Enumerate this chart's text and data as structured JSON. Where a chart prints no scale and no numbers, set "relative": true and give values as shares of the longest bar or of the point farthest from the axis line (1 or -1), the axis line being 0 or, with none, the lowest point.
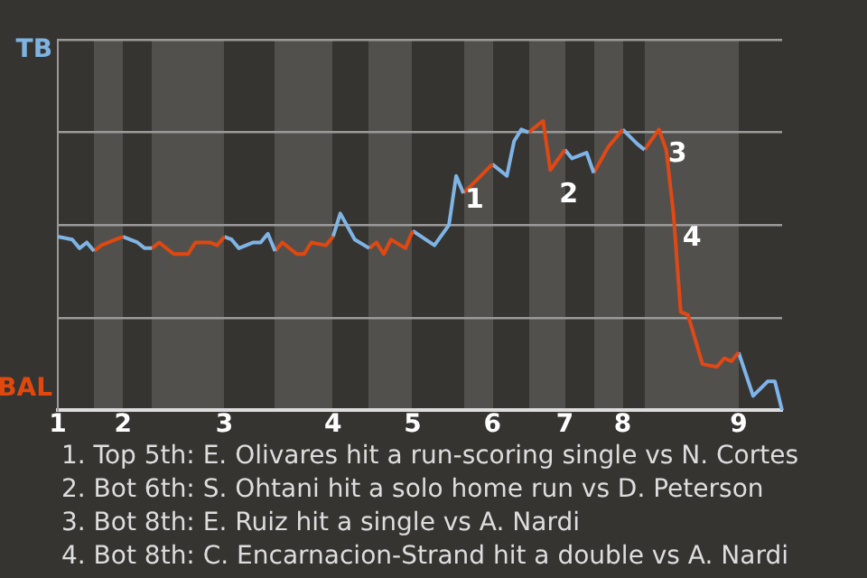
{
  "chart_data": {
    "type": "line",
    "relative": true,
    "grid": "y",
    "legend": false,
    "categories": [
      "1",
      null,
      null,
      null,
      null,
      null,
      null,
      null,
      null,
      "2",
      null,
      null,
      null,
      null,
      null,
      null,
      null,
      null,
      null,
      null,
      null,
      null,
      null,
      "3",
      null,
      null,
      null,
      null,
      null,
      null,
      null,
      null,
      null,
      null,
      null,
      null,
      null,
      null,
      "4",
      null,
      null,
      null,
      null,
      null,
      null,
      null,
      null,
      null,
      null,
      "5",
      null,
      null,
      null,
      null,
      null,
      null,
      null,
      null,
      null,
      null,
      "6",
      null,
      null,
      null,
      null,
      null,
      null,
      null,
      null,
      null,
      "7",
      null,
      null,
      null,
      null,
      null,
      null,
      null,
      "8",
      null,
      null,
      null,
      null,
      null,
      null,
      null,
      null,
      null,
      null,
      null,
      null,
      null,
      null,
      null,
      "9",
      null,
      null,
      null,
      null,
      null,
      null
    ],
    "series": [
      {
        "name": "TB",
        "color": "#7fb4e2",
        "values": [
          0.6,
          null,
          0.59,
          0.56,
          0.58,
          0.55,
          null,
          null,
          null,
          null,
          null,
          null,
          null,
          null,
          null,
          null,
          null,
          null,
          null,
          null,
          null,
          null,
          null,
          null,
          null,
          null,
          null,
          null,
          null,
          null,
          null,
          null,
          null,
          null,
          null,
          null,
          null,
          null,
          null,
          null,
          null,
          null,
          null,
          null,
          null,
          null,
          null,
          null,
          null,
          null,
          null,
          null,
          null,
          null,
          null,
          null,
          null,
          null,
          null,
          null,
          null,
          null,
          null,
          null,
          null,
          null,
          null,
          null,
          null,
          null,
          null,
          null,
          null,
          null,
          null,
          null,
          null,
          null,
          null,
          null,
          null,
          null,
          null,
          null,
          null,
          null,
          null,
          null,
          null,
          null,
          null,
          null,
          null,
          null,
          null,
          null,
          null,
          null,
          null,
          null,
          null
        ]
      },
      {
        "name": "BAL",
        "color": "#e0480e",
        "values": [
          null,
          null,
          null,
          null,
          null,
          0.55,
          0.57,
          null,
          0.59,
          0.6,
          null,
          null,
          null,
          null,
          null,
          null,
          null,
          null,
          null,
          null,
          null,
          null,
          null,
          null,
          null,
          null,
          null,
          null,
          null,
          null,
          null,
          null,
          null,
          null,
          null,
          null,
          null,
          null,
          null,
          null,
          null,
          null,
          null,
          null,
          null,
          null,
          null,
          null,
          null,
          null,
          null,
          null,
          null,
          null,
          null,
          null,
          null,
          null,
          null,
          null,
          null,
          null,
          null,
          null,
          null,
          null,
          null,
          null,
          null,
          null,
          null,
          null,
          null,
          null,
          null,
          null,
          null,
          null,
          null,
          null,
          null,
          null,
          null,
          null,
          null,
          null,
          null,
          null,
          null,
          null,
          null,
          null,
          null,
          null,
          null,
          null,
          null,
          null,
          null,
          null,
          null
        ]
      },
      {
        "color": "#7fb4e3",
        "values": [
          null,
          null,
          null,
          null,
          null,
          null,
          null,
          null,
          null,
          0.6,
          null,
          0.58,
          0.56,
          0.56,
          null,
          null,
          null,
          null,
          null,
          null,
          null,
          null,
          null,
          null,
          null,
          null,
          null,
          null,
          null,
          null,
          null,
          null,
          null,
          null,
          null,
          null,
          null,
          null,
          null,
          null,
          null,
          null,
          null,
          null,
          null,
          null,
          null,
          null,
          null,
          null,
          null,
          null,
          null,
          null,
          null,
          null,
          null,
          null,
          null,
          null,
          null,
          null,
          null,
          null,
          null,
          null,
          null,
          null,
          null,
          null,
          null,
          null,
          null,
          null,
          null,
          null,
          null,
          null,
          null,
          null,
          null,
          null,
          null,
          null,
          null,
          null,
          null,
          null,
          null,
          null,
          null,
          null,
          null,
          null,
          null,
          null,
          null,
          null,
          null,
          null,
          null
        ]
      },
      {
        "color": "#e0480f",
        "values": [
          null,
          null,
          null,
          null,
          null,
          null,
          null,
          null,
          null,
          null,
          null,
          null,
          null,
          0.56,
          0.58,
          null,
          0.54,
          null,
          0.54,
          0.58,
          null,
          0.58,
          0.57,
          0.6,
          null,
          null,
          null,
          null,
          null,
          null,
          null,
          null,
          null,
          null,
          null,
          null,
          null,
          null,
          null,
          null,
          null,
          null,
          null,
          null,
          null,
          null,
          null,
          null,
          null,
          null,
          null,
          null,
          null,
          null,
          null,
          null,
          null,
          null,
          null,
          null,
          null,
          null,
          null,
          null,
          null,
          null,
          null,
          null,
          null,
          null,
          null,
          null,
          null,
          null,
          null,
          null,
          null,
          null,
          null,
          null,
          null,
          null,
          null,
          null,
          null,
          null,
          null,
          null,
          null,
          null,
          null,
          null,
          null,
          null,
          null,
          null,
          null,
          null,
          null,
          null,
          null
        ]
      },
      {
        "color": "#7fb4e4",
        "values": [
          null,
          null,
          null,
          null,
          null,
          null,
          null,
          null,
          null,
          null,
          null,
          null,
          null,
          null,
          null,
          null,
          null,
          null,
          null,
          null,
          null,
          null,
          null,
          0.6,
          0.59,
          0.56,
          null,
          0.58,
          0.58,
          0.61,
          0.55,
          null,
          null,
          null,
          null,
          null,
          null,
          null,
          null,
          null,
          null,
          null,
          null,
          null,
          null,
          null,
          null,
          null,
          null,
          null,
          null,
          null,
          null,
          null,
          null,
          null,
          null,
          null,
          null,
          null,
          null,
          null,
          null,
          null,
          null,
          null,
          null,
          null,
          null,
          null,
          null,
          null,
          null,
          null,
          null,
          null,
          null,
          null,
          null,
          null,
          null,
          null,
          null,
          null,
          null,
          null,
          null,
          null,
          null,
          null,
          null,
          null,
          null,
          null,
          null,
          null,
          null,
          null,
          null,
          null,
          null
        ]
      },
      {
        "color": "#e04810",
        "values": [
          null,
          null,
          null,
          null,
          null,
          null,
          null,
          null,
          null,
          null,
          null,
          null,
          null,
          null,
          null,
          null,
          null,
          null,
          null,
          null,
          null,
          null,
          null,
          null,
          null,
          null,
          null,
          null,
          null,
          null,
          0.55,
          0.58,
          null,
          0.54,
          0.54,
          0.58,
          null,
          0.57,
          0.6,
          null,
          null,
          null,
          null,
          null,
          null,
          null,
          null,
          null,
          null,
          null,
          null,
          null,
          null,
          null,
          null,
          null,
          null,
          null,
          null,
          null,
          null,
          null,
          null,
          null,
          null,
          null,
          null,
          null,
          null,
          null,
          null,
          null,
          null,
          null,
          null,
          null,
          null,
          null,
          null,
          null,
          null,
          null,
          null,
          null,
          null,
          null,
          null,
          null,
          null,
          null,
          null,
          null,
          null,
          null,
          null,
          null,
          null,
          null,
          null,
          null,
          null
        ]
      },
      {
        "color": "#7fb4e5",
        "values": [
          null,
          null,
          null,
          null,
          null,
          null,
          null,
          null,
          null,
          null,
          null,
          null,
          null,
          null,
          null,
          null,
          null,
          null,
          null,
          null,
          null,
          null,
          null,
          null,
          null,
          null,
          null,
          null,
          null,
          null,
          null,
          null,
          null,
          null,
          null,
          null,
          null,
          null,
          0.6,
          0.68,
          null,
          0.59,
          null,
          0.56,
          null,
          null,
          null,
          null,
          null,
          null,
          null,
          null,
          null,
          null,
          null,
          null,
          null,
          null,
          null,
          null,
          null,
          null,
          null,
          null,
          null,
          null,
          null,
          null,
          null,
          null,
          null,
          null,
          null,
          null,
          null,
          null,
          null,
          null,
          null,
          null,
          null,
          null,
          null,
          null,
          null,
          null,
          null,
          null,
          null,
          null,
          null,
          null,
          null,
          null,
          null,
          null,
          null,
          null,
          null,
          null,
          null
        ]
      },
      {
        "color": "#e04811",
        "values": [
          null,
          null,
          null,
          null,
          null,
          null,
          null,
          null,
          null,
          null,
          null,
          null,
          null,
          null,
          null,
          null,
          null,
          null,
          null,
          null,
          null,
          null,
          null,
          null,
          null,
          null,
          null,
          null,
          null,
          null,
          null,
          null,
          null,
          null,
          null,
          null,
          null,
          null,
          null,
          null,
          null,
          null,
          null,
          0.56,
          0.58,
          0.54,
          0.59,
          null,
          0.56,
          0.62,
          null,
          null,
          null,
          null,
          null,
          null,
          null,
          null,
          null,
          null,
          null,
          null,
          null,
          null,
          null,
          null,
          null,
          null,
          null,
          null,
          null,
          null,
          null,
          null,
          null,
          null,
          null,
          null,
          null,
          null,
          null,
          null,
          null,
          null,
          null,
          null,
          null,
          null,
          null,
          null,
          null,
          null,
          null,
          null,
          null,
          null,
          null,
          null,
          null,
          null,
          null
        ]
      },
      {
        "color": "#7fb4e6",
        "values": [
          null,
          null,
          null,
          null,
          null,
          null,
          null,
          null,
          null,
          null,
          null,
          null,
          null,
          null,
          null,
          null,
          null,
          null,
          null,
          null,
          null,
          null,
          null,
          null,
          null,
          null,
          null,
          null,
          null,
          null,
          null,
          null,
          null,
          null,
          null,
          null,
          null,
          null,
          null,
          null,
          null,
          null,
          null,
          null,
          null,
          null,
          null,
          null,
          null,
          0.62,
          null,
          null,
          0.57,
          null,
          0.64,
          0.81,
          0.75,
          null,
          null,
          null,
          null,
          null,
          null,
          null,
          null,
          null,
          null,
          null,
          null,
          null,
          null,
          null,
          null,
          null,
          null,
          null,
          null,
          null,
          null,
          null,
          null,
          null,
          null,
          null,
          null,
          null,
          null,
          null,
          null,
          null,
          null,
          null,
          null,
          null,
          null,
          null,
          null,
          null,
          null,
          null,
          null
        ]
      },
      {
        "color": "#e04812",
        "values": [
          null,
          null,
          null,
          null,
          null,
          null,
          null,
          null,
          null,
          null,
          null,
          null,
          null,
          null,
          null,
          null,
          null,
          null,
          null,
          null,
          null,
          null,
          null,
          null,
          null,
          null,
          null,
          null,
          null,
          null,
          null,
          null,
          null,
          null,
          null,
          null,
          null,
          null,
          null,
          null,
          null,
          null,
          null,
          null,
          null,
          null,
          null,
          null,
          null,
          null,
          null,
          null,
          null,
          null,
          null,
          null,
          0.75,
          null,
          0.8,
          null,
          0.85,
          null,
          null,
          null,
          null,
          null,
          null,
          null,
          null,
          null,
          null,
          null,
          null,
          null,
          null,
          null,
          null,
          null,
          null,
          null,
          null,
          null,
          null,
          null,
          null,
          null,
          null,
          null,
          null,
          null,
          null,
          null,
          null,
          null,
          null,
          null,
          null,
          null,
          null,
          null,
          null
        ]
      },
      {
        "color": "#7fb4e7",
        "values": [
          null,
          null,
          null,
          null,
          null,
          null,
          null,
          null,
          null,
          null,
          null,
          null,
          null,
          null,
          null,
          null,
          null,
          null,
          null,
          null,
          null,
          null,
          null,
          null,
          null,
          null,
          null,
          null,
          null,
          null,
          null,
          null,
          null,
          null,
          null,
          null,
          null,
          null,
          null,
          null,
          null,
          null,
          null,
          null,
          null,
          null,
          null,
          null,
          null,
          null,
          null,
          null,
          null,
          null,
          null,
          null,
          null,
          null,
          null,
          null,
          0.85,
          null,
          0.81,
          0.93,
          0.97,
          0.96,
          null,
          null,
          null,
          null,
          null,
          null,
          null,
          null,
          null,
          null,
          null,
          null,
          null,
          null,
          null,
          null,
          null,
          null,
          null,
          null,
          null,
          null,
          null,
          null,
          null,
          null,
          null,
          null,
          null,
          null,
          null,
          null,
          null,
          null,
          null
        ]
      },
      {
        "color": "#e04813",
        "values": [
          null,
          null,
          null,
          null,
          null,
          null,
          null,
          null,
          null,
          null,
          null,
          null,
          null,
          null,
          null,
          null,
          null,
          null,
          null,
          null,
          null,
          null,
          null,
          null,
          null,
          null,
          null,
          null,
          null,
          null,
          null,
          null,
          null,
          null,
          null,
          null,
          null,
          null,
          null,
          null,
          null,
          null,
          null,
          null,
          null,
          null,
          null,
          null,
          null,
          null,
          null,
          null,
          null,
          null,
          null,
          null,
          null,
          null,
          null,
          null,
          null,
          null,
          null,
          null,
          null,
          0.96,
          null,
          1,
          0.83,
          null,
          0.9,
          null,
          null,
          null,
          null,
          null,
          null,
          null,
          null,
          null,
          null,
          null,
          null,
          null,
          null,
          null,
          null,
          null,
          null,
          null,
          null,
          null,
          null,
          null,
          null,
          null,
          null,
          null,
          null,
          null,
          null
        ]
      },
      {
        "color": "#7fb4e8",
        "values": [
          null,
          null,
          null,
          null,
          null,
          null,
          null,
          null,
          null,
          null,
          null,
          null,
          null,
          null,
          null,
          null,
          null,
          null,
          null,
          null,
          null,
          null,
          null,
          null,
          null,
          null,
          null,
          null,
          null,
          null,
          null,
          null,
          null,
          null,
          null,
          null,
          null,
          null,
          null,
          null,
          null,
          null,
          null,
          null,
          null,
          null,
          null,
          null,
          null,
          null,
          null,
          null,
          null,
          null,
          null,
          null,
          null,
          null,
          null,
          null,
          null,
          null,
          null,
          null,
          null,
          null,
          null,
          null,
          null,
          null,
          0.9,
          0.87,
          null,
          0.89,
          0.82,
          null,
          null,
          null,
          null,
          null,
          null,
          null,
          null,
          null,
          null,
          null,
          null,
          null,
          null,
          null,
          null,
          null,
          null,
          null,
          null,
          null,
          null,
          null,
          null,
          null,
          null
        ]
      },
      {
        "color": "#e04814",
        "values": [
          null,
          null,
          null,
          null,
          null,
          null,
          null,
          null,
          null,
          null,
          null,
          null,
          null,
          null,
          null,
          null,
          null,
          null,
          null,
          null,
          null,
          null,
          null,
          null,
          null,
          null,
          null,
          null,
          null,
          null,
          null,
          null,
          null,
          null,
          null,
          null,
          null,
          null,
          null,
          null,
          null,
          null,
          null,
          null,
          null,
          null,
          null,
          null,
          null,
          null,
          null,
          null,
          null,
          null,
          null,
          null,
          null,
          null,
          null,
          null,
          null,
          null,
          null,
          null,
          null,
          null,
          null,
          null,
          null,
          null,
          null,
          null,
          null,
          null,
          0.82,
          null,
          0.91,
          null,
          0.97,
          null,
          null,
          null,
          null,
          null,
          null,
          null,
          null,
          null,
          null,
          null,
          null,
          null,
          null,
          null,
          null,
          null,
          null,
          null,
          null,
          null,
          null
        ]
      },
      {
        "color": "#7fb4e9",
        "values": [
          null,
          null,
          null,
          null,
          null,
          null,
          null,
          null,
          null,
          null,
          null,
          null,
          null,
          null,
          null,
          null,
          null,
          null,
          null,
          null,
          null,
          null,
          null,
          null,
          null,
          null,
          null,
          null,
          null,
          null,
          null,
          null,
          null,
          null,
          null,
          null,
          null,
          null,
          null,
          null,
          null,
          null,
          null,
          null,
          null,
          null,
          null,
          null,
          null,
          null,
          null,
          null,
          null,
          null,
          null,
          null,
          null,
          null,
          null,
          null,
          null,
          null,
          null,
          null,
          null,
          null,
          null,
          null,
          null,
          null,
          null,
          null,
          null,
          null,
          null,
          null,
          null,
          null,
          0.97,
          null,
          0.92,
          0.9,
          null,
          null,
          null,
          null,
          null,
          null,
          null,
          null,
          null,
          null,
          null,
          null,
          null,
          null,
          null,
          null,
          null,
          null,
          null
        ]
      },
      {
        "color": "#e04815",
        "values": [
          null,
          null,
          null,
          null,
          null,
          null,
          null,
          null,
          null,
          null,
          null,
          null,
          null,
          null,
          null,
          null,
          null,
          null,
          null,
          null,
          null,
          null,
          null,
          null,
          null,
          null,
          null,
          null,
          null,
          null,
          null,
          null,
          null,
          null,
          null,
          null,
          null,
          null,
          null,
          null,
          null,
          null,
          null,
          null,
          null,
          null,
          null,
          null,
          null,
          null,
          null,
          null,
          null,
          null,
          null,
          null,
          null,
          null,
          null,
          null,
          null,
          null,
          null,
          null,
          null,
          null,
          null,
          null,
          null,
          null,
          null,
          null,
          null,
          null,
          null,
          null,
          null,
          null,
          null,
          null,
          null,
          0.9,
          null,
          0.97,
          0.9,
          0.68,
          0.34,
          0.33,
          null,
          0.16,
          null,
          0.15,
          0.18,
          0.17,
          0.2,
          null,
          null,
          null,
          null,
          null,
          null
        ]
      },
      {
        "color": "#7fb4ea",
        "values": [
          null,
          null,
          null,
          null,
          null,
          null,
          null,
          null,
          null,
          null,
          null,
          null,
          null,
          null,
          null,
          null,
          null,
          null,
          null,
          null,
          null,
          null,
          null,
          null,
          null,
          null,
          null,
          null,
          null,
          null,
          null,
          null,
          null,
          null,
          null,
          null,
          null,
          null,
          null,
          null,
          null,
          null,
          null,
          null,
          null,
          null,
          null,
          null,
          null,
          null,
          null,
          null,
          null,
          null,
          null,
          null,
          null,
          null,
          null,
          null,
          null,
          null,
          null,
          null,
          null,
          null,
          null,
          null,
          null,
          null,
          null,
          null,
          null,
          null,
          null,
          null,
          null,
          null,
          null,
          null,
          null,
          null,
          null,
          null,
          null,
          null,
          null,
          null,
          null,
          null,
          null,
          null,
          null,
          null,
          0.2,
          null,
          0.05,
          null,
          0.1,
          0.1,
          0
        ]
      }
    ],
    "annotations": [
      "1",
      "2",
      "3",
      "4",
      "1. Top 5th: E. Olivares hit a run-scoring single vs N. Cortes",
      "2. Bot 6th: S. Ohtani hit a solo home run vs D. Peterson",
      "3. Bot 8th: E. Ruiz hit a single vs A. Nardi",
      "4. Bot 8th: C. Encarnacion-Strand hit a double vs A. Nardi"
    ]
  }
}
